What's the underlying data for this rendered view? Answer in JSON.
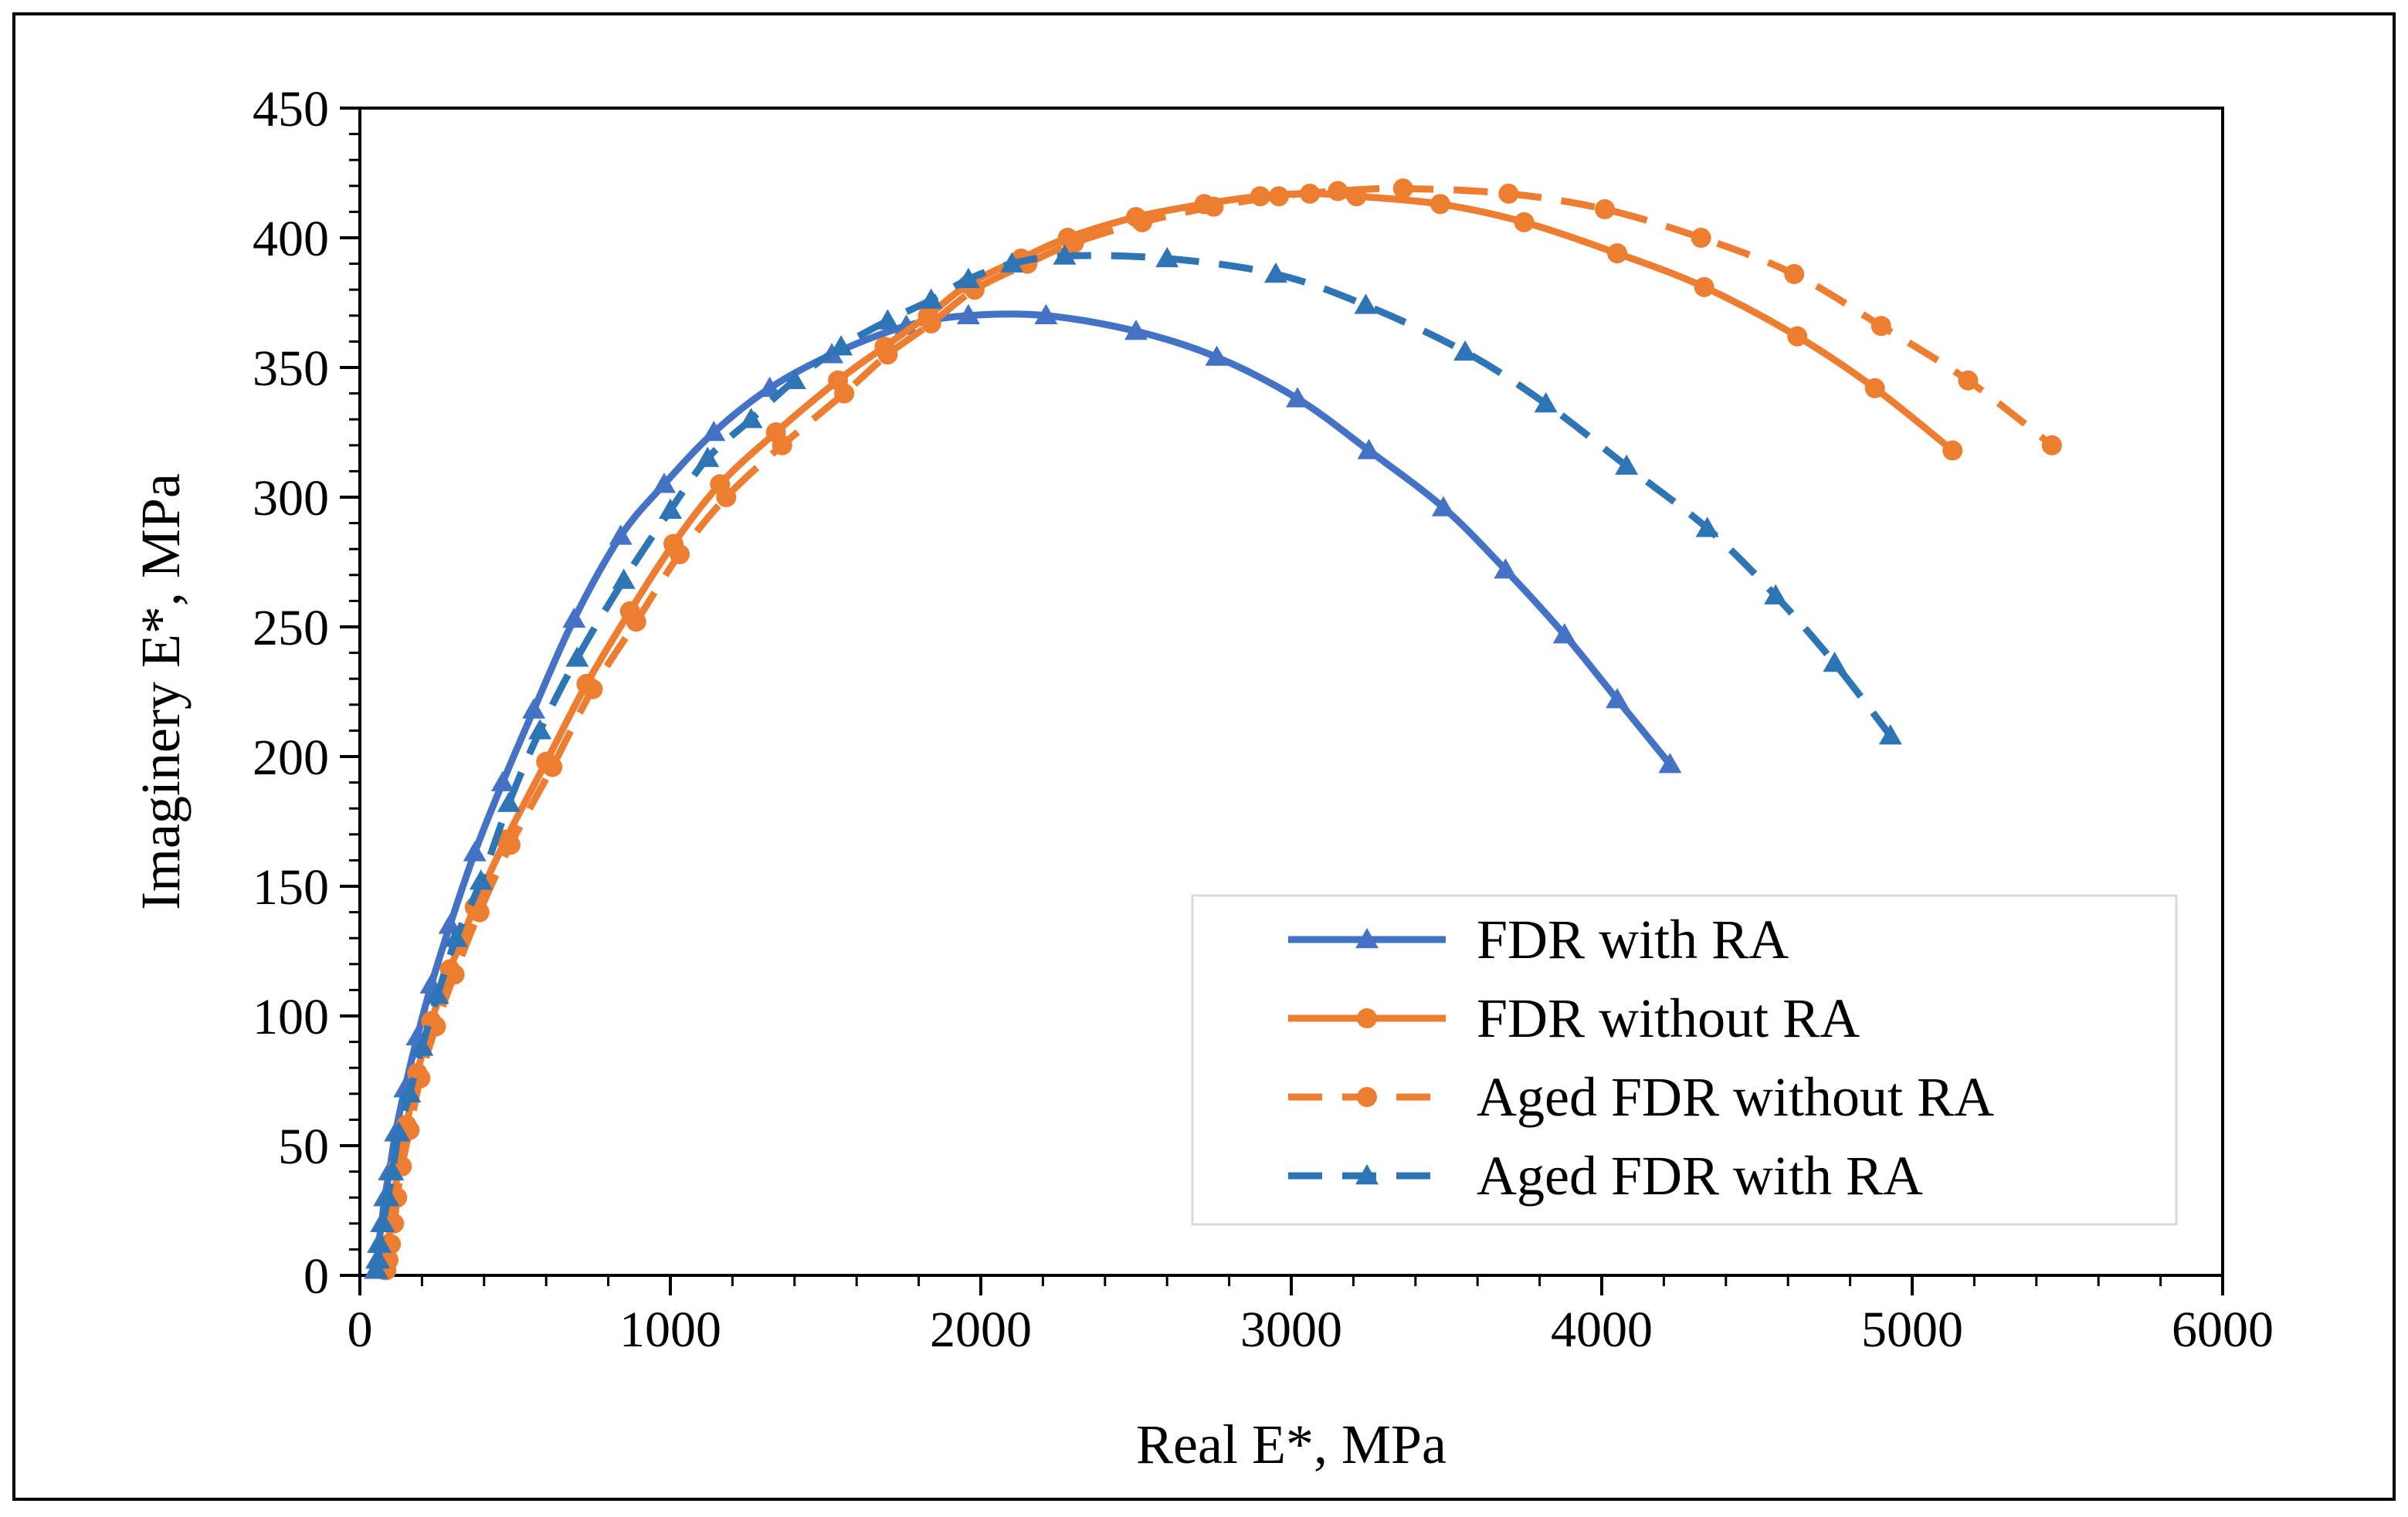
{
  "chart_data": {
    "type": "scatter",
    "title": "",
    "xlabel": "Real E*, MPa",
    "ylabel": "Imaginery E*, MPa",
    "xlim": [
      0,
      6000
    ],
    "ylim": [
      0,
      450
    ],
    "xticks": [
      0,
      1000,
      2000,
      3000,
      4000,
      5000,
      6000
    ],
    "yticks": [
      0,
      50,
      100,
      150,
      200,
      250,
      300,
      350,
      400,
      450
    ],
    "xtick_labels": [
      "0",
      "1000",
      "2000",
      "3000",
      "4000",
      "5000",
      "6000"
    ],
    "ytick_labels": [
      "0",
      "50",
      "100",
      "150",
      "200",
      "250",
      "300",
      "350",
      "400",
      "450"
    ],
    "grid": false,
    "legend_position": "bottom-right",
    "series": [
      {
        "name": "FDR with RA",
        "color": "#4472C4",
        "line": "solid",
        "marker": "triangle",
        "x": [
          50,
          55,
          60,
          70,
          80,
          95,
          115,
          145,
          185,
          230,
          290,
          370,
          460,
          560,
          690,
          840,
          980,
          1140,
          1320,
          1520,
          1760,
          1960,
          2210,
          2500,
          2760,
          3020,
          3250,
          3490,
          3690,
          3880,
          4050,
          4220
        ],
        "y": [
          2,
          6,
          12,
          20,
          30,
          40,
          55,
          72,
          92,
          112,
          135,
          163,
          190,
          218,
          253,
          285,
          305,
          325,
          342,
          355,
          366,
          370,
          370,
          364,
          354,
          338,
          318,
          296,
          272,
          247,
          222,
          197
        ]
      },
      {
        "name": "FDR without RA",
        "color": "#ED7D31",
        "line": "solid",
        "marker": "circle",
        "x": [
          80,
          85,
          90,
          100,
          110,
          125,
          150,
          185,
          230,
          290,
          370,
          470,
          600,
          730,
          870,
          1010,
          1160,
          1340,
          1540,
          1690,
          1830,
          1960,
          2130,
          2280,
          2500,
          2720,
          2900,
          3060,
          3210,
          3480,
          3750,
          4050,
          4330,
          4630,
          4880,
          5130
        ],
        "y": [
          2,
          6,
          12,
          20,
          30,
          42,
          58,
          78,
          98,
          118,
          142,
          168,
          198,
          228,
          256,
          282,
          305,
          325,
          345,
          358,
          370,
          382,
          392,
          400,
          408,
          413,
          416,
          417,
          416,
          413,
          406,
          394,
          381,
          362,
          342,
          318
        ]
      },
      {
        "name": "Aged FDR without RA",
        "color": "#ED7D31",
        "line": "dashed",
        "marker": "circle",
        "x": [
          85,
          92,
          100,
          110,
          120,
          135,
          160,
          195,
          245,
          305,
          385,
          485,
          620,
          750,
          890,
          1030,
          1180,
          1360,
          1560,
          1700,
          1840,
          1980,
          2150,
          2300,
          2520,
          2750,
          2960,
          3150,
          3360,
          3700,
          4010,
          4320,
          4620,
          4900,
          5180,
          5450
        ],
        "y": [
          2,
          6,
          12,
          20,
          30,
          42,
          56,
          76,
          96,
          116,
          140,
          166,
          196,
          226,
          252,
          278,
          300,
          320,
          340,
          355,
          367,
          380,
          390,
          398,
          406,
          412,
          416,
          418,
          419,
          417,
          411,
          400,
          386,
          366,
          345,
          320
        ]
      },
      {
        "name": "Aged FDR with RA",
        "color": "#2E75B6",
        "line": "dashed",
        "marker": "triangle",
        "x": [
          55,
          60,
          65,
          75,
          90,
          105,
          125,
          160,
          200,
          250,
          310,
          390,
          480,
          580,
          700,
          850,
          1000,
          1120,
          1260,
          1400,
          1550,
          1700,
          1840,
          1960,
          2100,
          2270,
          2600,
          2950,
          3240,
          3560,
          3820,
          4080,
          4340,
          4560,
          4750,
          4930
        ],
        "y": [
          2,
          6,
          12,
          20,
          30,
          40,
          55,
          70,
          88,
          108,
          130,
          152,
          182,
          210,
          238,
          268,
          295,
          315,
          330,
          345,
          358,
          368,
          376,
          384,
          390,
          393,
          392,
          386,
          374,
          356,
          336,
          312,
          288,
          262,
          236,
          208
        ]
      }
    ]
  }
}
